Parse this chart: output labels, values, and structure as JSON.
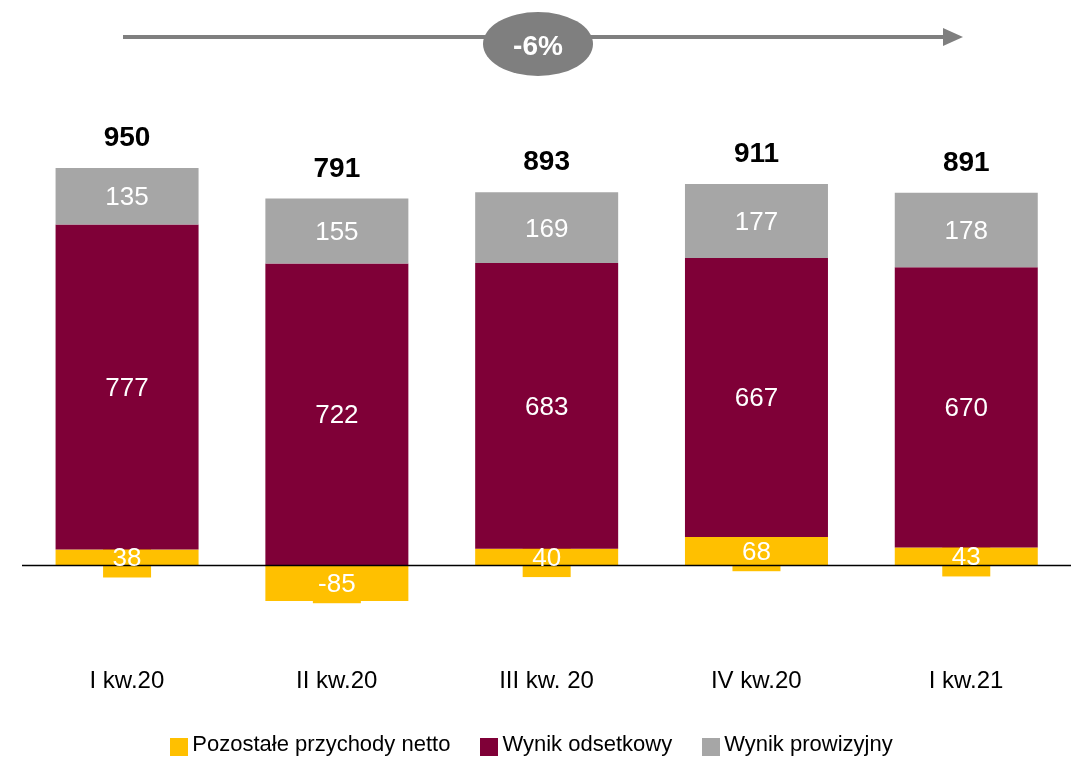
{
  "chart_data": {
    "type": "bar",
    "stacked": true,
    "categories": [
      "I kw.20",
      "II kw.20",
      "III kw. 20",
      "IV kw.20",
      "I kw.21"
    ],
    "series": [
      {
        "name": "Pozostałe przychody netto",
        "color": "#ffc000",
        "values": [
          38,
          -85,
          40,
          68,
          43
        ]
      },
      {
        "name": "Wynik odsetkowy",
        "color": "#7f0037",
        "values": [
          777,
          722,
          683,
          667,
          670
        ]
      },
      {
        "name": "Wynik prowizyjny",
        "color": "#a6a6a6",
        "values": [
          135,
          155,
          169,
          177,
          178
        ]
      }
    ],
    "totals": [
      "950",
      "791",
      "893",
      "911",
      "891"
    ],
    "data_labels": true,
    "annotations": [
      "-6%"
    ],
    "ref_lines": [
      {
        "axis": "y",
        "value": 0,
        "color": "#000000"
      }
    ],
    "legend": "bottom",
    "grid": false
  }
}
